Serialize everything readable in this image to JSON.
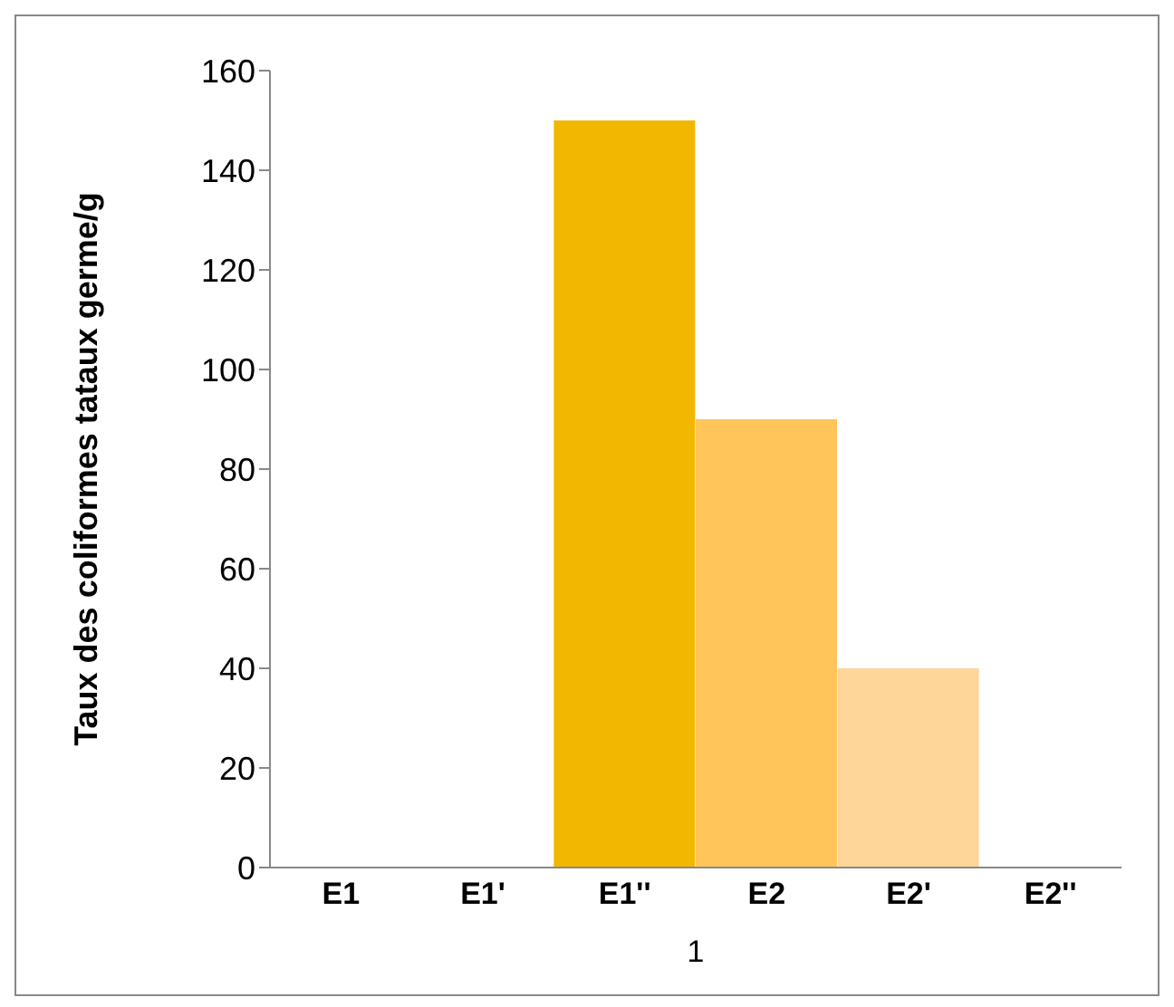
{
  "chart_data": {
    "type": "bar",
    "categories": [
      "E1",
      "E1'",
      "E1''",
      "E2",
      "E2'",
      "E2''"
    ],
    "values": [
      0,
      0,
      150,
      90,
      40,
      0
    ],
    "colors": [
      "#f2b700",
      "#f2b700",
      "#f2b700",
      "#ffc55a",
      "#ffd699",
      "#ffd699"
    ],
    "ylabel": "Taux des coliformes tataux germe/g",
    "xlabel": "1",
    "ylim": [
      0,
      160
    ],
    "yticks": [
      0,
      20,
      40,
      60,
      80,
      100,
      120,
      140,
      160
    ],
    "grid": false,
    "legend": false
  }
}
